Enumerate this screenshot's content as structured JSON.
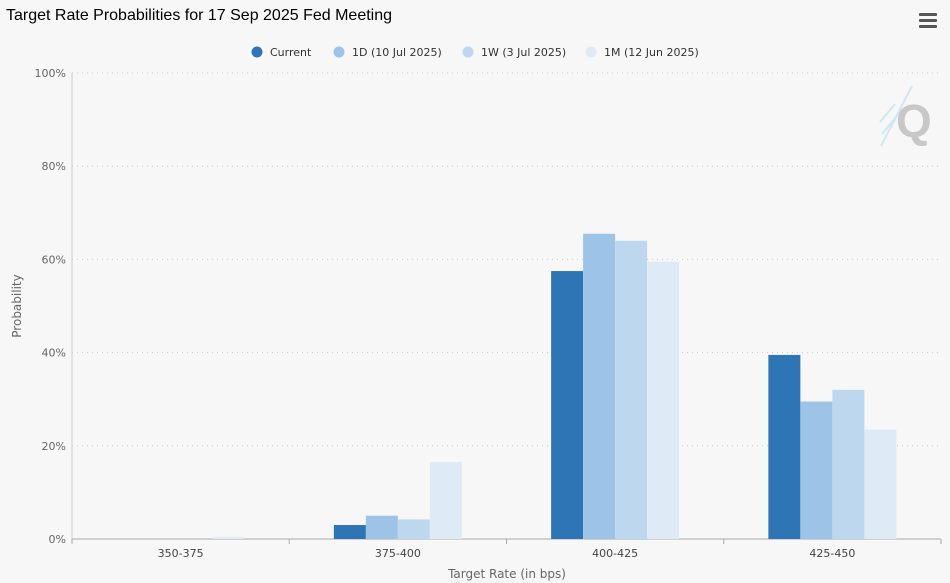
{
  "title": "Target Rate Probabilities for 17 Sep 2025 Fed Meeting",
  "menu": {
    "icon": "hamburger-menu-icon"
  },
  "watermark": {
    "icon": "q-logo-icon",
    "text": "Q"
  },
  "chart_data": {
    "type": "bar",
    "title": "Target Rate Probabilities for 17 Sep 2025 Fed Meeting",
    "xlabel": "Target Rate (in bps)",
    "ylabel": "Probability",
    "categories": [
      "350-375",
      "375-400",
      "400-425",
      "425-450"
    ],
    "ylim": [
      0,
      100
    ],
    "yticks": [
      "0%",
      "20%",
      "40%",
      "60%",
      "80%",
      "100%"
    ],
    "ytick_values": [
      0,
      20,
      40,
      60,
      80,
      100
    ],
    "grid": true,
    "legend_position": "top-center",
    "series": [
      {
        "name": "Current",
        "color": "#2e75b6",
        "values": [
          0,
          3.0,
          57.5,
          39.5
        ]
      },
      {
        "name": "1D (10 Jul 2025)",
        "color": "#9dc3e6",
        "values": [
          0,
          5.0,
          65.5,
          29.5
        ]
      },
      {
        "name": "1W (3 Jul 2025)",
        "color": "#bdd7ee",
        "values": [
          0,
          4.2,
          64.0,
          32.0
        ]
      },
      {
        "name": "1M (12 Jun 2025)",
        "color": "#deebf7",
        "values": [
          0.4,
          16.5,
          59.5,
          23.5
        ]
      }
    ]
  }
}
